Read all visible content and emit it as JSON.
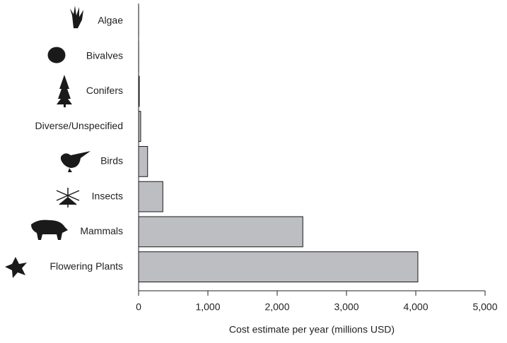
{
  "chart_data": {
    "type": "bar",
    "orientation": "horizontal",
    "categories": [
      "Algae",
      "Bivalves",
      "Conifers",
      "Diverse/Unspecified",
      "Birds",
      "Insects",
      "Mammals",
      "Flowering Plants"
    ],
    "values": [
      0.5,
      1,
      10,
      30,
      130,
      350,
      2370,
      4030
    ],
    "color": "#bdbec2",
    "xlabel": "Cost estimate per year (millions USD)",
    "xlim": [
      0,
      5000
    ],
    "xticks": [
      0,
      {
        "value": 1000,
        "label": "1,000"
      },
      {
        "value": 2000,
        "label": "2,000"
      },
      {
        "value": 3000,
        "label": "3,000"
      },
      {
        "value": 4000,
        "label": "4,000"
      },
      {
        "value": 5000,
        "label": "5,000"
      }
    ],
    "grid": false
  }
}
